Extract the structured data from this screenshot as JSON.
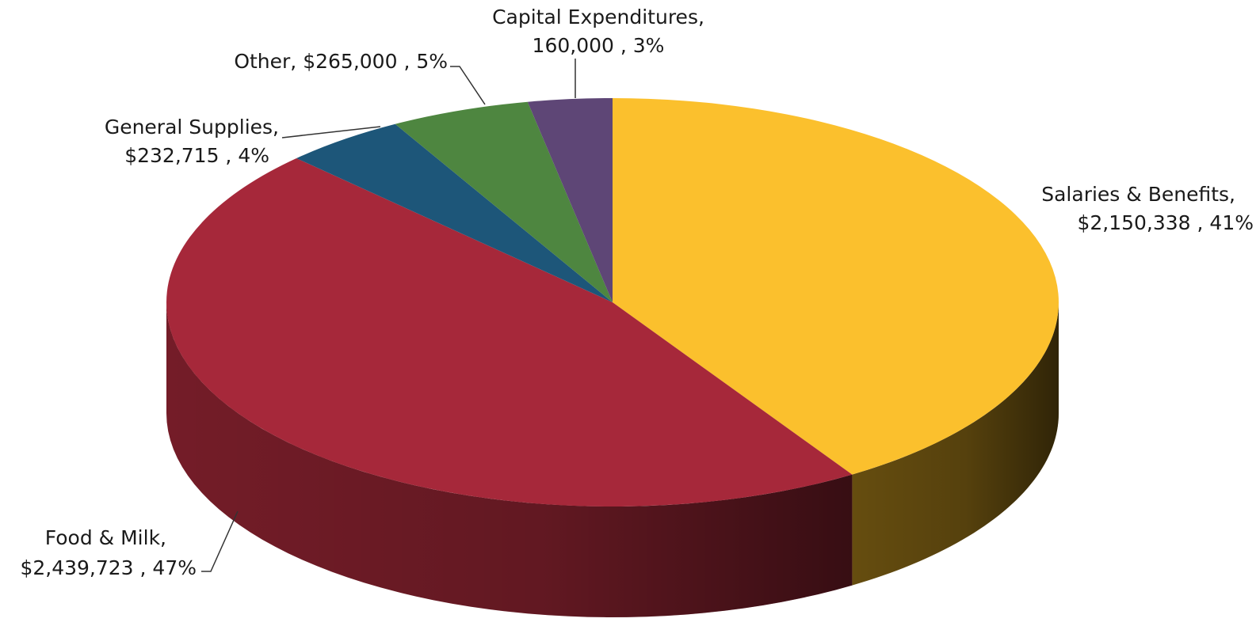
{
  "chart_data": {
    "type": "pie",
    "style": "3d",
    "title": "",
    "slices": [
      {
        "name": "Salaries & Benefits",
        "value": 2150338,
        "percent": 41,
        "color": "#FBC02D",
        "side_color": "#6B5110",
        "label_line1": "Salaries & Benefits,",
        "label_line2": "$2,150,338 , 41%"
      },
      {
        "name": "Food & Milk",
        "value": 2439723,
        "percent": 47,
        "color": "#A6283A",
        "side_color": "#7A1E2A",
        "label_line1": "Food & Milk,",
        "label_line2": "$2,439,723 , 47%"
      },
      {
        "name": "General Supplies",
        "value": 232715,
        "percent": 4,
        "color": "#1D5679",
        "side_color": "#123A52",
        "label_line1": "General Supplies,",
        "label_line2": "$232,715 , 4%"
      },
      {
        "name": "Other",
        "value": 265000,
        "percent": 5,
        "color": "#4E8640",
        "side_color": "#34592B",
        "label_line1": "Other,  $265,000 , 5%",
        "label_line2": ""
      },
      {
        "name": "Capital Expenditures",
        "value": 160000,
        "percent": 3,
        "color": "#5E4676",
        "side_color": "#3E2E4F",
        "label_line1": "Capital Expenditures,",
        "label_line2": "160,000 , 3%"
      }
    ],
    "start_direction": "top",
    "direction": "clockwise",
    "legend": "none",
    "data_labels": "outside with leader lines"
  }
}
